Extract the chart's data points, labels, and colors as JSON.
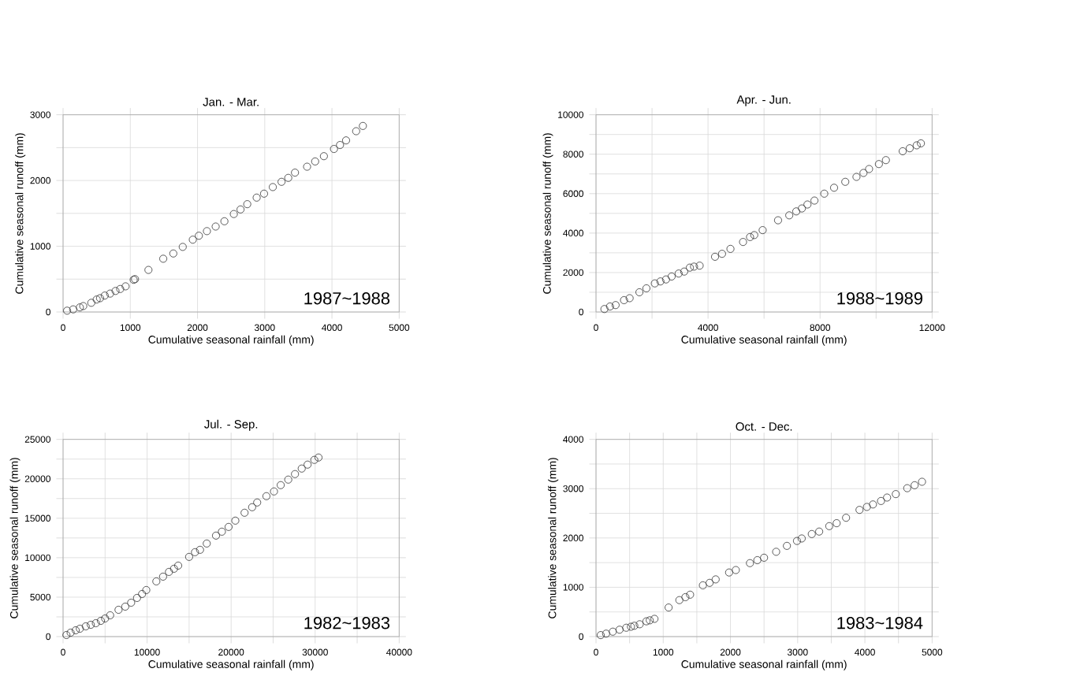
{
  "chart_data": [
    {
      "type": "scatter",
      "title": "Jan. - Mar.",
      "xlabel": "Cumulative seasonal rainfall (mm)",
      "ylabel": "Cumulative seasonal runoff (mm)",
      "marker": "circle",
      "grid": true,
      "annotations": [
        "1987~1988"
      ],
      "xlim": [
        0,
        5000
      ],
      "ylim": [
        0,
        3000
      ],
      "xticks": [
        0,
        1000,
        2000,
        3000,
        4000,
        5000
      ],
      "yticks": [
        0,
        {
          "value": 500,
          "label": null
        },
        1000,
        {
          "value": 1500,
          "label": null
        },
        2000,
        {
          "value": 2500,
          "label": null
        },
        3000
      ],
      "series": [
        {
          "color": "#333333",
          "x": [
            60,
            150,
            250,
            300,
            420,
            500,
            550,
            620,
            700,
            780,
            850,
            930,
            1050,
            1070,
            1270,
            1490,
            1640,
            1780,
            1930,
            2020,
            2140,
            2270,
            2400,
            2540,
            2640,
            2740,
            2880,
            2990,
            3120,
            3250,
            3350,
            3450,
            3630,
            3750,
            3880,
            4030,
            4120,
            4210,
            4360,
            4460
          ],
          "values": [
            20,
            40,
            70,
            90,
            140,
            190,
            210,
            250,
            280,
            320,
            350,
            390,
            490,
            500,
            640,
            810,
            890,
            990,
            1100,
            1160,
            1230,
            1300,
            1380,
            1490,
            1560,
            1640,
            1740,
            1800,
            1900,
            1980,
            2040,
            2120,
            2210,
            2290,
            2370,
            2480,
            2540,
            2610,
            2750,
            2830
          ]
        }
      ]
    },
    {
      "type": "scatter",
      "title": "Apr. - Jun.",
      "xlabel": "Cumulative seasonal rainfall (mm)",
      "ylabel": "Cumulative seasonal runoff (mm)",
      "marker": "circle",
      "grid": true,
      "annotations": [
        "1988~1989"
      ],
      "xlim": [
        0,
        12000
      ],
      "ylim": [
        0,
        10000
      ],
      "xticks": [
        0,
        {
          "value": 2000,
          "label": null
        },
        4000,
        {
          "value": 6000,
          "label": null
        },
        8000,
        {
          "value": 10000,
          "label": null
        },
        12000
      ],
      "yticks": [
        0,
        {
          "value": 1000,
          "label": null
        },
        2000,
        {
          "value": 3000,
          "label": null
        },
        4000,
        {
          "value": 5000,
          "label": null
        },
        6000,
        {
          "value": 7000,
          "label": null
        },
        8000,
        {
          "value": 9000,
          "label": null
        },
        10000
      ],
      "series": [
        {
          "color": "#333333",
          "x": [
            300,
            500,
            700,
            1000,
            1200,
            1550,
            1800,
            2100,
            2300,
            2500,
            2700,
            2950,
            3150,
            3350,
            3500,
            3700,
            4250,
            4500,
            4800,
            5250,
            5500,
            5650,
            5950,
            6500,
            6900,
            7150,
            7350,
            7550,
            7800,
            8150,
            8500,
            8900,
            9300,
            9550,
            9750,
            10100,
            10350,
            10950,
            11200,
            11450,
            11600
          ],
          "values": [
            150,
            280,
            350,
            600,
            700,
            1000,
            1200,
            1450,
            1550,
            1650,
            1800,
            1950,
            2050,
            2250,
            2300,
            2350,
            2800,
            2950,
            3200,
            3550,
            3800,
            3900,
            4150,
            4650,
            4900,
            5100,
            5250,
            5450,
            5650,
            6000,
            6300,
            6600,
            6850,
            7050,
            7250,
            7500,
            7700,
            8150,
            8300,
            8450,
            8550
          ]
        }
      ]
    },
    {
      "type": "scatter",
      "title": "Jul. - Sep.",
      "xlabel": "Cumulative seasonal rainfall (mm)",
      "ylabel": "Cumulative seasonal runoff (mm)",
      "marker": "circle",
      "grid": true,
      "annotations": [
        "1982~1983"
      ],
      "xlim": [
        0,
        40000
      ],
      "ylim": [
        0,
        25000
      ],
      "xticks": [
        0,
        {
          "value": 5000,
          "label": null
        },
        10000,
        {
          "value": 15000,
          "label": null
        },
        20000,
        {
          "value": 25000,
          "label": null
        },
        30000,
        {
          "value": 35000,
          "label": null
        },
        40000
      ],
      "yticks": [
        0,
        {
          "value": 2500,
          "label": null
        },
        5000,
        {
          "value": 7500,
          "label": null
        },
        10000,
        {
          "value": 12500,
          "label": null
        },
        15000,
        {
          "value": 17500,
          "label": null
        },
        20000,
        {
          "value": 22500,
          "label": null
        },
        25000
      ],
      "series": [
        {
          "color": "#333333",
          "x": [
            400,
            900,
            1500,
            2000,
            2700,
            3300,
            3900,
            4500,
            5000,
            5600,
            6600,
            7400,
            8100,
            8800,
            9400,
            9900,
            11100,
            11900,
            12600,
            13200,
            13700,
            15000,
            15700,
            16300,
            17100,
            18200,
            18900,
            19700,
            20500,
            21600,
            22500,
            23100,
            24200,
            25100,
            25900,
            26800,
            27600,
            28400,
            29100,
            29900,
            30400
          ],
          "values": [
            200,
            500,
            800,
            1000,
            1300,
            1500,
            1700,
            2000,
            2300,
            2700,
            3400,
            3800,
            4300,
            4900,
            5400,
            5900,
            7000,
            7600,
            8200,
            8600,
            9000,
            10100,
            10700,
            11000,
            11800,
            12800,
            13300,
            13900,
            14700,
            15700,
            16400,
            17000,
            17800,
            18400,
            19200,
            19900,
            20600,
            21300,
            21800,
            22400,
            22700
          ]
        }
      ]
    },
    {
      "type": "scatter",
      "title": "Oct. - Dec.",
      "xlabel": "Cumulative seasonal rainfall (mm)",
      "ylabel": "Cumulative seasonal runoff (mm)",
      "marker": "circle",
      "grid": true,
      "annotations": [
        "1983~1984"
      ],
      "xlim": [
        0,
        5000
      ],
      "ylim": [
        0,
        4000
      ],
      "xticks": [
        0,
        {
          "value": 500,
          "label": null
        },
        1000,
        {
          "value": 1500,
          "label": null
        },
        2000,
        {
          "value": 2500,
          "label": null
        },
        3000,
        {
          "value": 3500,
          "label": null
        },
        4000,
        {
          "value": 4500,
          "label": null
        },
        5000
      ],
      "yticks": [
        0,
        {
          "value": 500,
          "label": null
        },
        1000,
        {
          "value": 1500,
          "label": null
        },
        2000,
        {
          "value": 2500,
          "label": null
        },
        3000,
        {
          "value": 3500,
          "label": null
        },
        4000
      ],
      "series": [
        {
          "color": "#333333",
          "x": [
            70,
            150,
            250,
            350,
            450,
            520,
            570,
            650,
            750,
            800,
            870,
            1080,
            1240,
            1330,
            1400,
            1590,
            1690,
            1780,
            1980,
            2080,
            2290,
            2400,
            2500,
            2680,
            2840,
            2990,
            3060,
            3210,
            3320,
            3470,
            3580,
            3720,
            3920,
            4030,
            4120,
            4240,
            4330,
            4460,
            4630,
            4740,
            4850
          ],
          "values": [
            30,
            60,
            100,
            140,
            180,
            200,
            220,
            250,
            310,
            330,
            360,
            590,
            740,
            800,
            850,
            1040,
            1090,
            1160,
            1300,
            1350,
            1490,
            1550,
            1600,
            1720,
            1840,
            1940,
            1990,
            2080,
            2130,
            2240,
            2300,
            2410,
            2570,
            2630,
            2680,
            2750,
            2820,
            2890,
            3010,
            3070,
            3140
          ]
        }
      ]
    }
  ]
}
